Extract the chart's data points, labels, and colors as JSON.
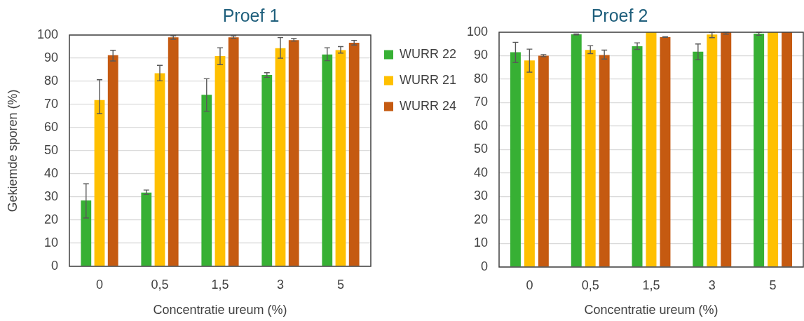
{
  "chart_data": [
    {
      "type": "bar",
      "title": "Proef 1",
      "xlabel": "Concentratie ureum (%)",
      "ylabel": "Gekiemde sporen (%)",
      "categories": [
        "0",
        "0,5",
        "1,5",
        "3",
        "5"
      ],
      "series": [
        {
          "name": "WURR 22",
          "color": "#37b034",
          "values": [
            28.5,
            31.9,
            74.2,
            82.7,
            91.6
          ],
          "errors": [
            [
              20.9,
              35.7
            ],
            [
              31.1,
              33.0
            ],
            [
              67.0,
              81.1
            ],
            [
              81.7,
              83.7
            ],
            [
              88.9,
              94.5
            ]
          ]
        },
        {
          "name": "WURR 21",
          "color": "#ffc000",
          "values": [
            71.9,
            83.5,
            90.9,
            94.3,
            93.5
          ],
          "errors": [
            [
              66.0,
              80.7
            ],
            [
              80.2,
              86.9
            ],
            [
              87.2,
              94.5
            ],
            [
              90.0,
              98.9
            ],
            [
              92.2,
              95.0
            ]
          ]
        },
        {
          "name": "WURR 24",
          "color": "#c55a11",
          "values": [
            91.3,
            99.0,
            99.0,
            97.8,
            96.7
          ],
          "errors": [
            [
              88.8,
              93.4
            ],
            [
              98.2,
              99.7
            ],
            [
              98.6,
              99.6
            ],
            [
              97.4,
              98.5
            ],
            [
              95.7,
              97.7
            ]
          ]
        }
      ],
      "ylim": [
        0,
        100
      ],
      "yticks": [
        0,
        10,
        20,
        30,
        40,
        50,
        60,
        70,
        80,
        90,
        100
      ],
      "grid": "y",
      "legend": "right"
    },
    {
      "type": "bar",
      "title": "Proef 2",
      "xlabel": "Concentratie ureum (%)",
      "categories": [
        "0",
        "0,5",
        "1,5",
        "3",
        "5"
      ],
      "series": [
        {
          "color": "#37b034",
          "values": [
            91.5,
            99.1,
            94.0,
            91.7,
            99.4
          ],
          "errors": [
            [
              87.1,
              95.7
            ],
            [
              98.9,
              99.3
            ],
            [
              92.7,
              95.5
            ],
            [
              88.3,
              95.0
            ],
            [
              98.7,
              100
            ]
          ]
        },
        {
          "color": "#ffc000",
          "values": [
            88.0,
            92.5,
            100,
            99.0,
            100
          ],
          "errors": [
            [
              83.0,
              92.8
            ],
            [
              90.9,
              94.3
            ],
            null,
            [
              97.7,
              100
            ],
            null
          ]
        },
        {
          "color": "#c55a11",
          "values": [
            90.0,
            90.3,
            97.9,
            100,
            100
          ],
          "errors": [
            [
              89.6,
              90.5
            ],
            [
              88.6,
              92.4
            ],
            [
              97.8,
              98.1
            ],
            [
              99.2,
              100
            ],
            null
          ]
        }
      ],
      "ylim": [
        0,
        100
      ],
      "yticks": [
        0,
        10,
        20,
        30,
        40,
        50,
        60,
        70,
        80,
        90,
        100
      ],
      "grid": "y"
    }
  ]
}
